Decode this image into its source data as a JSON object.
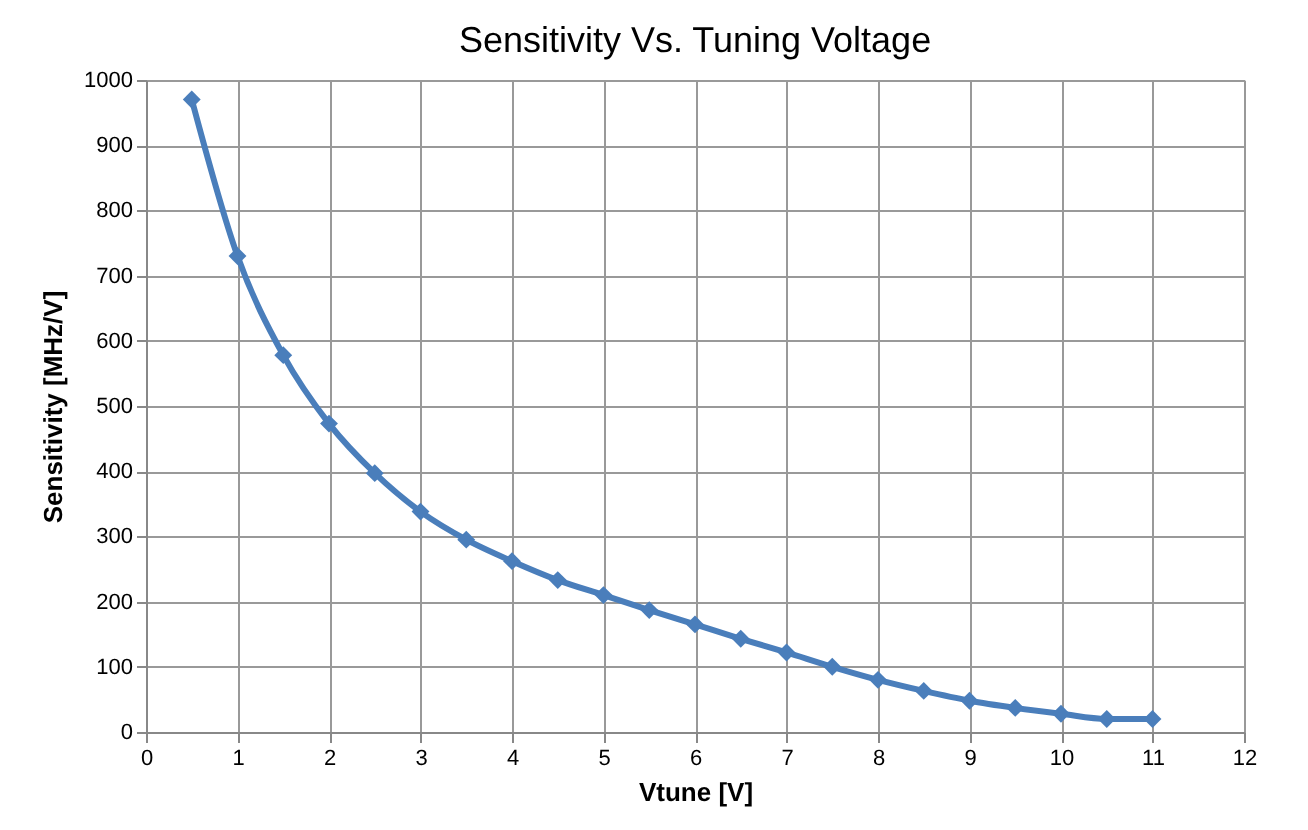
{
  "chart_data": {
    "type": "line",
    "title": "Sensitivity Vs. Tuning Voltage",
    "xlabel": "Vtune [V]",
    "ylabel": "Sensitivity [MHz/V]",
    "x": [
      0.5,
      1,
      1.5,
      2,
      2.5,
      3,
      3.5,
      4,
      4.5,
      5,
      5.5,
      6,
      6.5,
      7,
      7.5,
      8,
      8.5,
      9,
      9.5,
      10,
      10.5,
      11
    ],
    "series": [
      {
        "color": "#4a7ebb",
        "values": [
          970,
          730,
          578,
          473,
          397,
          338,
          295,
          262,
          233,
          210,
          187,
          165,
          143,
          122,
          100,
          80,
          63,
          48,
          37,
          28,
          20,
          20
        ]
      }
    ],
    "xlim": [
      0,
      12
    ],
    "xticks": [
      0,
      1,
      2,
      3,
      4,
      5,
      6,
      7,
      8,
      9,
      10,
      11,
      12
    ],
    "ylim": [
      0,
      1000
    ],
    "yticks": [
      0,
      100,
      200,
      300,
      400,
      500,
      600,
      700,
      800,
      900,
      1000
    ],
    "grid": true,
    "marker": "diamond",
    "line_style": "solid",
    "legend": false
  }
}
